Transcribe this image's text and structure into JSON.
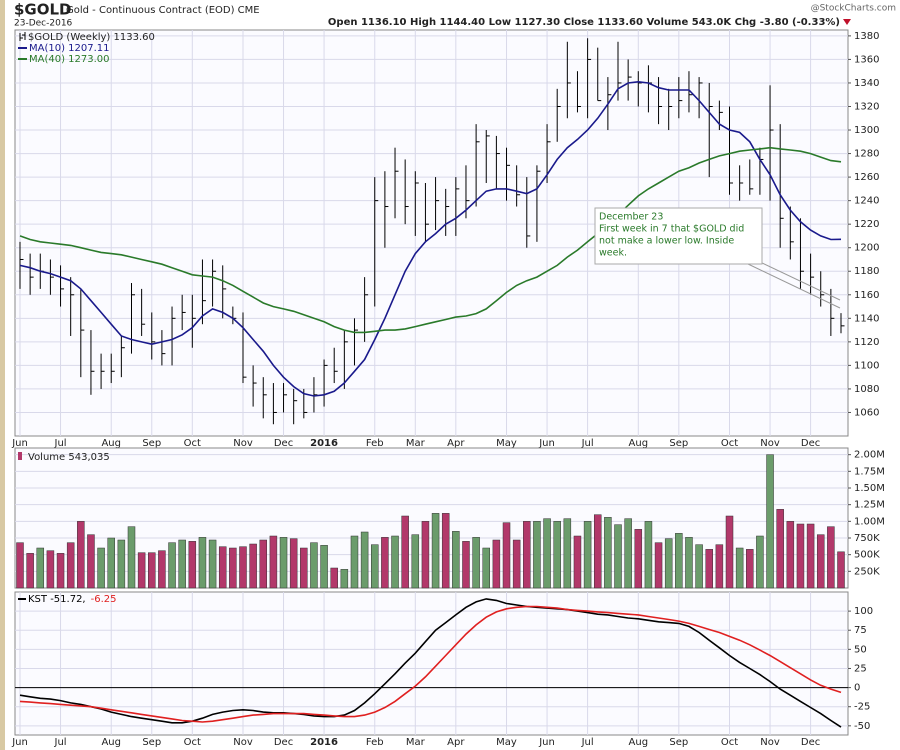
{
  "header": {
    "symbol": "$GOLD",
    "name": "Gold - Continuous Contract (EOD) CME",
    "date": "23-Dec-2016",
    "quote": "Open 1136.10 High 1144.40 Low 1127.30 Close 1133.60 Volume 543.0K Chg -3.80 (-0.33%)",
    "credit": "@StockCharts.com"
  },
  "annotation": [
    "December 23",
    "First week in 7 that $GOLD did",
    "not make a lower low. Inside",
    "week."
  ],
  "chart_data": [
    {
      "type": "ohlc",
      "title": "$GOLD (Weekly) 1133.60",
      "color": "#000000",
      "categories": [
        "Jun",
        null,
        null,
        null,
        "Jul",
        null,
        null,
        null,
        null,
        "Aug",
        null,
        null,
        null,
        "Sep",
        null,
        null,
        null,
        "Oct",
        null,
        null,
        null,
        null,
        "Nov",
        null,
        null,
        null,
        "Dec",
        null,
        null,
        null,
        "2016",
        null,
        null,
        null,
        null,
        "Feb",
        null,
        null,
        null,
        "Mar",
        null,
        null,
        null,
        "Apr",
        null,
        null,
        null,
        null,
        "May",
        null,
        null,
        null,
        "Jun",
        null,
        null,
        null,
        "Jul",
        null,
        null,
        null,
        null,
        "Aug",
        null,
        null,
        null,
        "Sep",
        null,
        null,
        null,
        null,
        "Oct",
        null,
        null,
        null,
        "Nov",
        null,
        null,
        null,
        "Dec",
        null,
        null,
        null
      ],
      "high": [
        1205,
        1195,
        1195,
        1190,
        1185,
        1175,
        1165,
        1130,
        1110,
        1110,
        1125,
        1170,
        1165,
        1145,
        1130,
        1150,
        1160,
        1160,
        1190,
        1190,
        1185,
        1150,
        1145,
        1100,
        1090,
        1085,
        1085,
        1080,
        1080,
        1090,
        1105,
        1115,
        1130,
        1140,
        1175,
        1260,
        1265,
        1285,
        1275,
        1265,
        1255,
        1260,
        1250,
        1260,
        1270,
        1305,
        1300,
        1295,
        1285,
        1270,
        1260,
        1270,
        1305,
        1335,
        1375,
        1350,
        1378,
        1370,
        1345,
        1375,
        1360,
        1350,
        1355,
        1345,
        1335,
        1345,
        1350,
        1345,
        1340,
        1325,
        1320,
        1270,
        1275,
        1285,
        1338,
        1305,
        1235,
        1225,
        1195,
        1180,
        1165,
        1144.4
      ],
      "low": [
        1165,
        1160,
        1165,
        1160,
        1150,
        1125,
        1090,
        1075,
        1080,
        1085,
        1090,
        1110,
        1125,
        1105,
        1100,
        1100,
        1130,
        1115,
        1135,
        1150,
        1140,
        1135,
        1085,
        1065,
        1055,
        1050,
        1060,
        1050,
        1055,
        1060,
        1065,
        1085,
        1080,
        1100,
        1120,
        1150,
        1200,
        1225,
        1220,
        1210,
        1205,
        1215,
        1210,
        1210,
        1225,
        1235,
        1255,
        1250,
        1240,
        1235,
        1200,
        1205,
        1255,
        1290,
        1310,
        1315,
        1310,
        1325,
        1300,
        1325,
        1325,
        1320,
        1315,
        1305,
        1300,
        1310,
        1315,
        1310,
        1260,
        1300,
        1245,
        1240,
        1245,
        1245,
        1240,
        1200,
        1190,
        1165,
        1160,
        1150,
        1125,
        1127.3
      ],
      "close": [
        1190,
        1175,
        1180,
        1175,
        1165,
        1160,
        1130,
        1095,
        1095,
        1095,
        1115,
        1160,
        1135,
        1120,
        1110,
        1140,
        1145,
        1140,
        1155,
        1180,
        1165,
        1140,
        1090,
        1085,
        1075,
        1060,
        1075,
        1070,
        1060,
        1075,
        1100,
        1095,
        1120,
        1130,
        1160,
        1240,
        1235,
        1265,
        1235,
        1255,
        1220,
        1240,
        1235,
        1250,
        1240,
        1290,
        1295,
        1280,
        1270,
        1245,
        1210,
        1265,
        1290,
        1320,
        1340,
        1320,
        1360,
        1325,
        1330,
        1340,
        1345,
        1340,
        1340,
        1320,
        1320,
        1325,
        1330,
        1340,
        1320,
        1315,
        1255,
        1255,
        1250,
        1275,
        1300,
        1225,
        1205,
        1180,
        1175,
        1160,
        1140,
        1133.6
      ],
      "series": [
        {
          "name": "MA(10) 1207.11",
          "color": "#1a1a8c",
          "values": [
            1185,
            1183,
            1180,
            1178,
            1175,
            1172,
            1165,
            1155,
            1145,
            1135,
            1125,
            1122,
            1120,
            1118,
            1120,
            1122,
            1126,
            1132,
            1142,
            1148,
            1145,
            1140,
            1132,
            1122,
            1112,
            1100,
            1090,
            1082,
            1076,
            1074,
            1075,
            1078,
            1085,
            1095,
            1105,
            1122,
            1140,
            1160,
            1180,
            1195,
            1205,
            1212,
            1220,
            1225,
            1232,
            1240,
            1248,
            1250,
            1250,
            1248,
            1246,
            1250,
            1262,
            1275,
            1285,
            1292,
            1300,
            1310,
            1322,
            1335,
            1340,
            1341,
            1340,
            1336,
            1334,
            1334,
            1334,
            1325,
            1315,
            1305,
            1300,
            1298,
            1290,
            1275,
            1262,
            1245,
            1232,
            1222,
            1215,
            1210,
            1207,
            1207.11
          ]
        },
        {
          "name": "MA(40) 1273.00",
          "color": "#2a7a2a",
          "values": [
            1210,
            1207,
            1205,
            1204,
            1203,
            1202,
            1200,
            1198,
            1196,
            1195,
            1194,
            1192,
            1190,
            1188,
            1186,
            1183,
            1180,
            1177,
            1176,
            1175,
            1172,
            1168,
            1163,
            1158,
            1153,
            1150,
            1148,
            1146,
            1143,
            1140,
            1137,
            1133,
            1130,
            1128,
            1128,
            1129,
            1130,
            1130,
            1131,
            1133,
            1135,
            1137,
            1139,
            1141,
            1142,
            1144,
            1148,
            1155,
            1162,
            1168,
            1172,
            1175,
            1180,
            1185,
            1192,
            1198,
            1205,
            1212,
            1220,
            1228,
            1236,
            1244,
            1250,
            1255,
            1260,
            1265,
            1268,
            1272,
            1275,
            1278,
            1280,
            1282,
            1283,
            1284,
            1285,
            1284,
            1283,
            1282,
            1280,
            1277,
            1274,
            1273
          ]
        }
      ],
      "ylim": [
        1040,
        1385
      ],
      "yticks": [
        1060,
        1080,
        1100,
        1120,
        1140,
        1160,
        1180,
        1200,
        1220,
        1240,
        1260,
        1280,
        1300,
        1320,
        1340,
        1360,
        1380
      ],
      "grid": true
    },
    {
      "type": "volume",
      "title": "Volume 543,035",
      "up_color": "#6b9c6b",
      "down_color": "#b2386a",
      "values": [
        680000,
        520000,
        600000,
        560000,
        520000,
        680000,
        1000000,
        800000,
        600000,
        750000,
        720000,
        920000,
        530000,
        530000,
        560000,
        680000,
        720000,
        700000,
        760000,
        720000,
        620000,
        600000,
        620000,
        660000,
        720000,
        780000,
        760000,
        740000,
        600000,
        680000,
        640000,
        300000,
        280000,
        780000,
        840000,
        650000,
        760000,
        780000,
        1080000,
        800000,
        1000000,
        1120000,
        1120000,
        850000,
        700000,
        760000,
        600000,
        720000,
        980000,
        720000,
        1000000,
        1000000,
        1040000,
        1000000,
        1040000,
        780000,
        1000000,
        1100000,
        1060000,
        950000,
        1040000,
        880000,
        1000000,
        680000,
        740000,
        820000,
        760000,
        650000,
        580000,
        650000,
        1080000,
        600000,
        580000,
        780000,
        2000000,
        1180000,
        1000000,
        960000,
        960000,
        800000,
        920000,
        543035
      ],
      "ylim": [
        0,
        2100000
      ],
      "yticks": [
        {
          "value": 250000,
          "label": "250K"
        },
        {
          "value": 500000,
          "label": "500K"
        },
        {
          "value": 750000,
          "label": "750K"
        },
        {
          "value": 1000000,
          "label": "1.00M"
        },
        {
          "value": 1250000,
          "label": "1.25M"
        },
        {
          "value": 1500000,
          "label": "1.50M"
        },
        {
          "value": 1750000,
          "label": "1.75M"
        },
        {
          "value": 2000000,
          "label": "2.00M"
        }
      ],
      "grid": true
    },
    {
      "type": "line",
      "categories": [
        "Jun",
        null,
        null,
        null,
        "Jul",
        null,
        null,
        null,
        null,
        "Aug",
        null,
        null,
        null,
        "Sep",
        null,
        null,
        null,
        "Oct",
        null,
        null,
        null,
        null,
        "Nov",
        null,
        null,
        null,
        "Dec",
        null,
        null,
        null,
        "2016",
        null,
        null,
        null,
        null,
        "Feb",
        null,
        null,
        null,
        "Mar",
        null,
        null,
        null,
        "Apr",
        null,
        null,
        null,
        null,
        "May",
        null,
        null,
        null,
        "Jun",
        null,
        null,
        null,
        "Jul",
        null,
        null,
        null,
        null,
        "Aug",
        null,
        null,
        null,
        "Sep",
        null,
        null,
        null,
        null,
        "Oct",
        null,
        null,
        null,
        "Nov",
        null,
        null,
        null,
        "Dec",
        null,
        null,
        null
      ],
      "series": [
        {
          "name": "KST -51.72,",
          "color": "#000000",
          "values": [
            -10,
            -12,
            -14,
            -15,
            -17,
            -20,
            -22,
            -25,
            -28,
            -32,
            -35,
            -38,
            -40,
            -42,
            -44,
            -46,
            -46,
            -44,
            -40,
            -35,
            -32,
            -30,
            -29,
            -30,
            -32,
            -33,
            -33,
            -34,
            -35,
            -37,
            -38,
            -38,
            -36,
            -30,
            -20,
            -8,
            5,
            18,
            32,
            45,
            60,
            75,
            85,
            95,
            105,
            112,
            116,
            114,
            110,
            108,
            106,
            105,
            104,
            103,
            102,
            100,
            98,
            96,
            95,
            93,
            91,
            90,
            88,
            86,
            85,
            84,
            80,
            72,
            62,
            52,
            42,
            33,
            25,
            17,
            8,
            -2,
            -10,
            -18,
            -26,
            -34,
            -43,
            -51.72
          ]
        },
        {
          "name": "-6.25",
          "color": "#e02020",
          "values": [
            -18,
            -19,
            -20,
            -21,
            -22,
            -23,
            -24,
            -25,
            -27,
            -29,
            -31,
            -33,
            -35,
            -37,
            -39,
            -41,
            -43,
            -44,
            -45,
            -44,
            -42,
            -40,
            -38,
            -36,
            -35,
            -34,
            -34,
            -34,
            -34,
            -35,
            -36,
            -37,
            -38,
            -38,
            -36,
            -32,
            -26,
            -18,
            -8,
            2,
            14,
            28,
            42,
            56,
            70,
            82,
            92,
            99,
            103,
            105,
            106,
            106,
            105,
            104,
            102,
            101,
            100,
            99,
            98,
            97,
            96,
            95,
            93,
            91,
            89,
            87,
            84,
            80,
            76,
            72,
            67,
            62,
            56,
            49,
            42,
            34,
            26,
            18,
            10,
            3,
            -2,
            -6.25
          ]
        }
      ],
      "ylim": [
        -62,
        125
      ],
      "yticks": [
        -50,
        -25,
        0,
        25,
        50,
        75,
        100
      ],
      "zero_line": 0,
      "grid": true
    }
  ]
}
